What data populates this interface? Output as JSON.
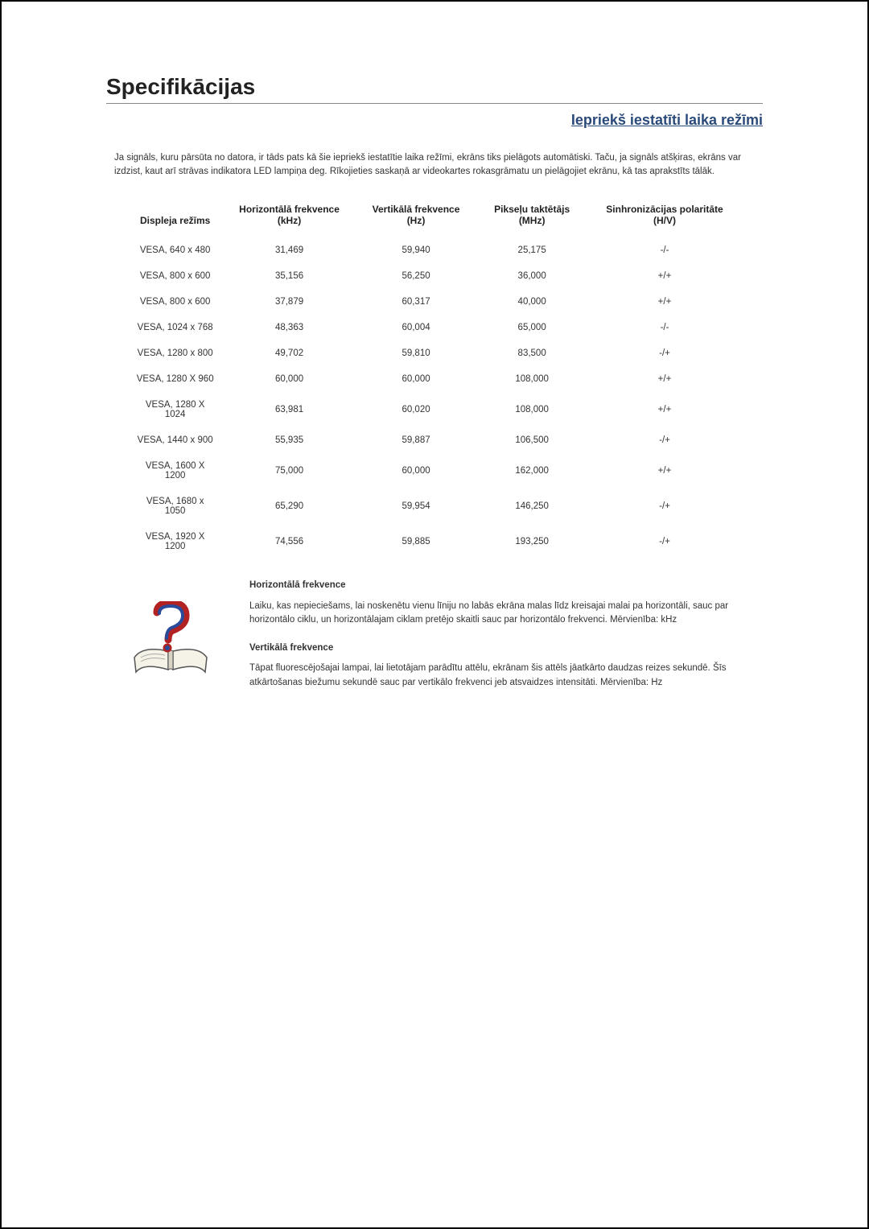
{
  "title": "Specifikācijas",
  "subtitle": "Iepriekš iestatīti laika režīmi",
  "intro": "Ja signāls, kuru pārsūta no datora, ir tāds pats kā šie iepriekš iestatītie laika režīmi, ekrāns tiks pielāgots automātiski. Taču, ja signāls atšķiras, ekrāns var izdzist, kaut arī strāvas indikatora LED lampiņa deg. Rīkojieties saskaņā ar videokartes rokasgrāmatu un pielāgojiet ekrānu, kā tas aprakstīts tālāk.",
  "table": {
    "headers": [
      "Displeja režīms",
      "Horizontālā frekvence (kHz)",
      "Vertikālā frekvence (Hz)",
      "Pikseļu taktētājs (MHz)",
      "Sinhronizācijas polaritāte (H/V)"
    ],
    "rows": [
      [
        "VESA, 640 x 480",
        "31,469",
        "59,940",
        "25,175",
        "-/-"
      ],
      [
        "VESA, 800 x 600",
        "35,156",
        "56,250",
        "36,000",
        "+/+"
      ],
      [
        "VESA, 800 x 600",
        "37,879",
        "60,317",
        "40,000",
        "+/+"
      ],
      [
        "VESA, 1024 x 768",
        "48,363",
        "60,004",
        "65,000",
        "-/-"
      ],
      [
        "VESA, 1280 x 800",
        "49,702",
        "59,810",
        "83,500",
        "-/+"
      ],
      [
        "VESA, 1280 X 960",
        "60,000",
        "60,000",
        "108,000",
        "+/+"
      ],
      [
        "VESA, 1280 X 1024",
        "63,981",
        "60,020",
        "108,000",
        "+/+"
      ],
      [
        "VESA, 1440 x 900",
        "55,935",
        "59,887",
        "106,500",
        "-/+"
      ],
      [
        "VESA, 1600 X 1200",
        "75,000",
        "60,000",
        "162,000",
        "+/+"
      ],
      [
        "VESA, 1680 x 1050",
        "65,290",
        "59,954",
        "146,250",
        "-/+"
      ],
      [
        "VESA, 1920 X 1200",
        "74,556",
        "59,885",
        "193,250",
        "-/+"
      ]
    ]
  },
  "defs": {
    "h_title": "Horizontālā frekvence",
    "h_body": "Laiku, kas nepieciešams, lai noskenētu vienu līniju no labās ekrāna malas līdz kreisajai malai pa horizontāli, sauc par horizontālo ciklu, un horizontālajam ciklam pretējo skaitli sauc par horizontālo frekvenci. Mērvienība: kHz",
    "v_title": "Vertikālā frekvence",
    "v_body": "Tāpat fluorescējošajai lampai, lai lietotājam parādītu attēlu, ekrānam šis attēls jāatkārto daudzas reizes sekundē. Šīs atkārtošanas biežumu sekundē sauc par vertikālo frekvenci jeb atsvaidzes intensitāti. Mērvienība: Hz"
  },
  "colors": {
    "subtitle": "#2a4a7a",
    "book_red": "#b22222",
    "book_blue": "#2a4a9a",
    "book_page": "#f5f2e8"
  }
}
